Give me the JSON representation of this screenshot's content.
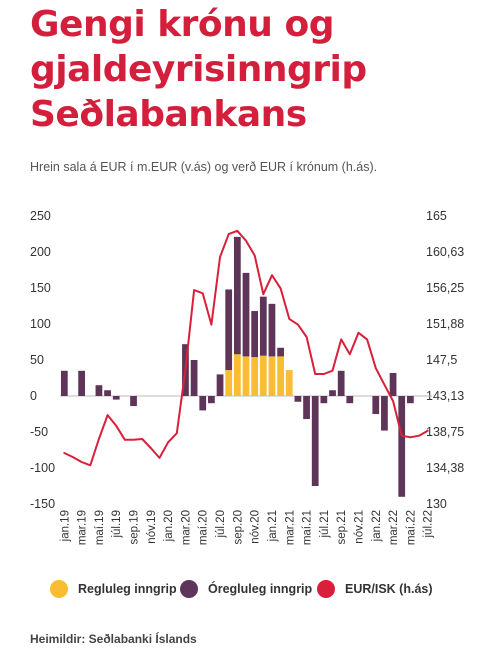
{
  "title_lines": [
    "Gengi krónu og",
    "gjaldeyrisinngrip",
    "Seðlabankans"
  ],
  "subtitle": "Hrein sala á EUR í m.EUR (v.ás) og verð EUR í krónum (h.ás).",
  "source": "Heimildir: Seðlabanki Íslands",
  "colors": {
    "title": "#d31f3c",
    "regular": "#f9bd34",
    "irregular": "#5e3558",
    "line": "#d8203a"
  },
  "legend": [
    {
      "label": "Regluleg inngrip",
      "color": "#f9bd34"
    },
    {
      "label": "Óregluleg inngrip",
      "color": "#5e3558"
    },
    {
      "label": "EUR/ISK (h.ás)",
      "color": "#d8203a"
    }
  ],
  "chart_data": {
    "type": "bar",
    "x": [
      "jan.19",
      "feb.19",
      "mar.19",
      "apr.19",
      "maí.19",
      "jún.19",
      "júl.19",
      "ágú.19",
      "sep.19",
      "okt.19",
      "nóv.19",
      "des.19",
      "jan.20",
      "feb.20",
      "mar.20",
      "apr.20",
      "maí.20",
      "jún.20",
      "júl.20",
      "ágú.20",
      "sep.20",
      "okt.20",
      "nóv.20",
      "des.20",
      "jan.21",
      "feb.21",
      "mar.21",
      "apr.21",
      "maí.21",
      "jún.21",
      "júl.21",
      "ágú.21",
      "sep.21",
      "okt.21",
      "nóv.21",
      "des.21",
      "jan.22",
      "feb.22",
      "mar.22",
      "apr.22",
      "maí.22",
      "jún.22",
      "júl.22"
    ],
    "tick_labels": [
      "jan.19",
      "mar.19",
      "maí.19",
      "júl.19",
      "sep.19",
      "nóv.19",
      "jan.20",
      "mar.20",
      "maí.20",
      "júl.20",
      "sep.20",
      "nóv.20",
      "jan.21",
      "mar.21",
      "maí.21",
      "júl.21",
      "sep.21",
      "nóv.21",
      "jan.22",
      "mar.22",
      "maí.22",
      "júl.22"
    ],
    "left_axis": {
      "ylim": [
        -150,
        250
      ],
      "ticks": [
        "250",
        "200",
        "150",
        "100",
        "50",
        "0",
        "-50",
        "-100",
        "-150"
      ]
    },
    "right_axis": {
      "ylim": [
        130,
        165
      ],
      "ticks": [
        "165",
        "160,63",
        "156,25",
        "151,88",
        "147,5",
        "143,13",
        "138,75",
        "134,38",
        "130"
      ]
    },
    "series": [
      {
        "name": "Regluleg inngrip",
        "axis": "left",
        "values": [
          0,
          0,
          0,
          0,
          0,
          0,
          0,
          0,
          0,
          0,
          0,
          0,
          0,
          0,
          0,
          0,
          0,
          0,
          0,
          36,
          58,
          55,
          54,
          56,
          55,
          55,
          36,
          0,
          0,
          0,
          0,
          0,
          0,
          0,
          0,
          0,
          0,
          0,
          0,
          0,
          0,
          0,
          0
        ]
      },
      {
        "name": "Óregluleg inngrip",
        "axis": "left",
        "values": [
          35,
          0,
          35,
          0,
          15,
          8,
          -5,
          0,
          -14,
          0,
          0,
          0,
          0,
          0,
          72,
          50,
          -20,
          -10,
          30,
          112,
          163,
          116,
          64,
          82,
          73,
          12,
          0,
          -8,
          -32,
          -125,
          -10,
          8,
          35,
          -10,
          0,
          0,
          -25,
          -48,
          32,
          -140,
          -10,
          0,
          0
        ]
      },
      {
        "name": "EUR/ISK (h.ás)",
        "axis": "right",
        "values": [
          136.2,
          135.7,
          135.1,
          134.7,
          137.9,
          140.8,
          139.5,
          137.8,
          137.8,
          137.9,
          136.8,
          135.6,
          137.5,
          138.6,
          146.3,
          156.0,
          155.6,
          151.8,
          160.0,
          162.8,
          163.2,
          162.0,
          160.2,
          155.5,
          157.8,
          156.2,
          152.5,
          151.8,
          150.3,
          145.8,
          145.8,
          146.2,
          150.0,
          148.2,
          150.8,
          150.0,
          146.5,
          144.5,
          142.5,
          138.3,
          138.1,
          138.3,
          138.9
        ]
      }
    ]
  }
}
